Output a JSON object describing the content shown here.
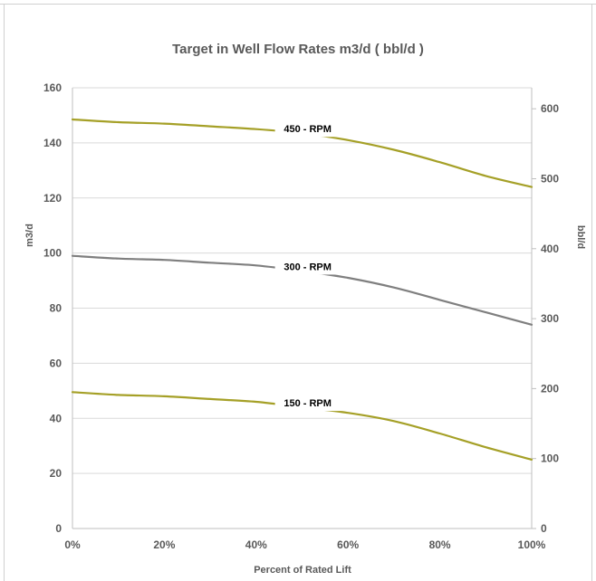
{
  "chart_data": {
    "type": "line",
    "title": "Target in Well Flow Rates m3/d  ( bbl/d )",
    "xlabel": "Percent of Rated Lift",
    "ylabel": "m3/d",
    "y2label": "bbl/d",
    "x": [
      0,
      10,
      20,
      30,
      40,
      50,
      60,
      70,
      80,
      90,
      100
    ],
    "x_tick_labels": [
      "0%",
      "20%",
      "40%",
      "60%",
      "80%",
      "100%"
    ],
    "x_ticks": [
      0,
      20,
      40,
      60,
      80,
      100
    ],
    "xlim": [
      0,
      100
    ],
    "ylim": [
      0,
      160
    ],
    "y_ticks": [
      0,
      20,
      40,
      60,
      80,
      100,
      120,
      140,
      160
    ],
    "y_tick_labels": [
      "0",
      "20",
      "40",
      "60",
      "80",
      "100",
      "120",
      "140",
      "160"
    ],
    "y2lim": [
      0,
      630
    ],
    "y2_ticks": [
      0,
      100,
      200,
      300,
      400,
      500,
      600
    ],
    "y2_tick_labels": [
      "0",
      "100",
      "200",
      "300",
      "400",
      "500",
      "600"
    ],
    "grid": "horizontal",
    "series": [
      {
        "name": "450 - RPM",
        "color": "#a5a027",
        "values": [
          148.5,
          147.5,
          147,
          146,
          145,
          143.5,
          141,
          137.5,
          133,
          128,
          124
        ]
      },
      {
        "name": "300 - RPM",
        "color": "#7f7f7f",
        "values": [
          99,
          98,
          97.5,
          96.5,
          95.5,
          93.5,
          91,
          87.5,
          83,
          78.5,
          74
        ]
      },
      {
        "name": "150 - RPM",
        "color": "#a5a027",
        "values": [
          49.5,
          48.5,
          48,
          47,
          46,
          44,
          42,
          39,
          34.5,
          29.5,
          25
        ]
      }
    ]
  }
}
